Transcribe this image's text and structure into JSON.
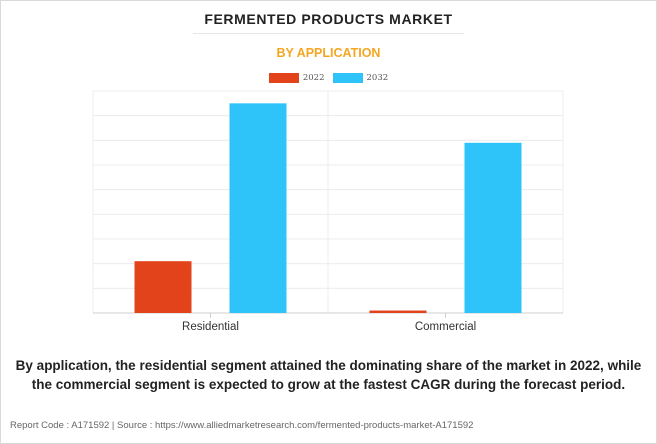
{
  "header": {
    "title": "FERMENTED PRODUCTS MARKET",
    "subtitle": "BY APPLICATION"
  },
  "legend": [
    {
      "label": "2022",
      "color": "#e2431a"
    },
    {
      "label": "2032",
      "color": "#2ec4fa"
    }
  ],
  "caption": "By application, the residential segment attained the dominating share of the market in 2022, while the commercial segment is expected to grow at the fastest CAGR during the forecast period.",
  "footer": "Report Code : A171592  |  Source : https://www.alliedmarketresearch.com/fermented-products-market-A171592",
  "chart_data": {
    "type": "bar",
    "title": "FERMENTED PRODUCTS MARKET",
    "subtitle": "BY APPLICATION",
    "categories": [
      "Residential",
      "Commercial"
    ],
    "series": [
      {
        "name": "2022",
        "color": "#e2431a",
        "values": [
          2.1,
          0.1
        ]
      },
      {
        "name": "2032",
        "color": "#2ec4fa",
        "values": [
          8.5,
          6.9
        ]
      }
    ],
    "ylim": [
      0,
      9
    ],
    "grid": true,
    "y_tick_labels_shown": false,
    "legend_position": "top-center"
  }
}
